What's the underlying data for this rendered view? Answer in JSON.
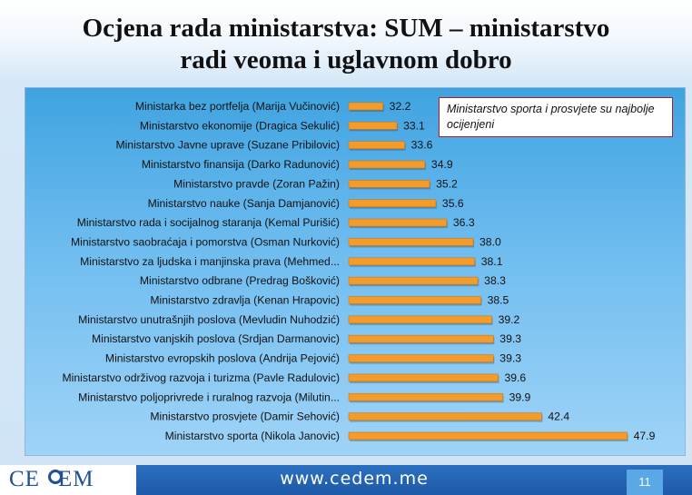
{
  "slide": {
    "title_line1": "Ocjena rada ministarstva: SUM – ministarstvo",
    "title_line2": "radi veoma i uglavnom dobro",
    "annotation": "Ministarstvo sporta i prosvjete su najbolje ocijenjeni",
    "logo_left": "CE",
    "logo_right": "EM",
    "website": "www.cedem.me",
    "page_number": "11"
  },
  "colors": {
    "bar": "#f39b2b",
    "panel_top": "#3fa3e0",
    "footer": "#1d5aa8",
    "annotation_border": "#a3222f"
  },
  "chart_data": {
    "type": "bar",
    "orientation": "horizontal",
    "categories": [
      "Ministarka bez portfelja (Marija Vučinović)",
      "Ministarstvo ekonomije (Dragica Sekulić)",
      "Ministarstvo Javne uprave (Suzane Pribilovic)",
      "Ministarstvo finansija (Darko  Radunović)",
      "Ministarstvo pravde (Zoran Pažin)",
      "Ministarstvo nauke (Sanja Damjanović)",
      "Ministarstvo rada i socijalnog staranja (Kemal Purišić)",
      "Ministarstvo saobraćaja i pomorstva (Osman Nurković)",
      "Ministarstvo za ljudska i manjinska prava (Mehmed...",
      "Ministarstvo odbrane (Predrag Bošković)",
      "Ministarstvo zdravlja (Kenan Hrapovic)",
      "Ministarstvo unutrašnjih poslova (Mevludin Nuhodzić)",
      "Ministarstvo vanjskih poslova (Srdjan Darmanovic)",
      "Ministarstvo evropskih poslova (Andrija Pejović)",
      "Ministarstvo održivog razvoja i turizma (Pavle Radulovic)",
      "Ministarstvo poljoprivrede i ruralnog razvoja  (Milutin...",
      "Ministarstvo prosvjete (Damir Sehović)",
      "Ministarstvo sporta (Nikola Janovic)"
    ],
    "values": [
      32.2,
      33.1,
      33.6,
      34.9,
      35.2,
      35.6,
      36.3,
      38.0,
      38.1,
      38.3,
      38.5,
      39.2,
      39.3,
      39.3,
      39.6,
      39.9,
      42.4,
      47.9
    ],
    "value_labels": [
      "32.2",
      "33.1",
      "33.6",
      "34.9",
      "35.2",
      "35.6",
      "36.3",
      "38.0",
      "38.1",
      "38.3",
      "38.5",
      "39.2",
      "39.3",
      "39.3",
      "39.6",
      "39.9",
      "42.4",
      "47.9"
    ],
    "xlim": [
      30,
      48
    ],
    "grid": false,
    "legend": "none"
  }
}
